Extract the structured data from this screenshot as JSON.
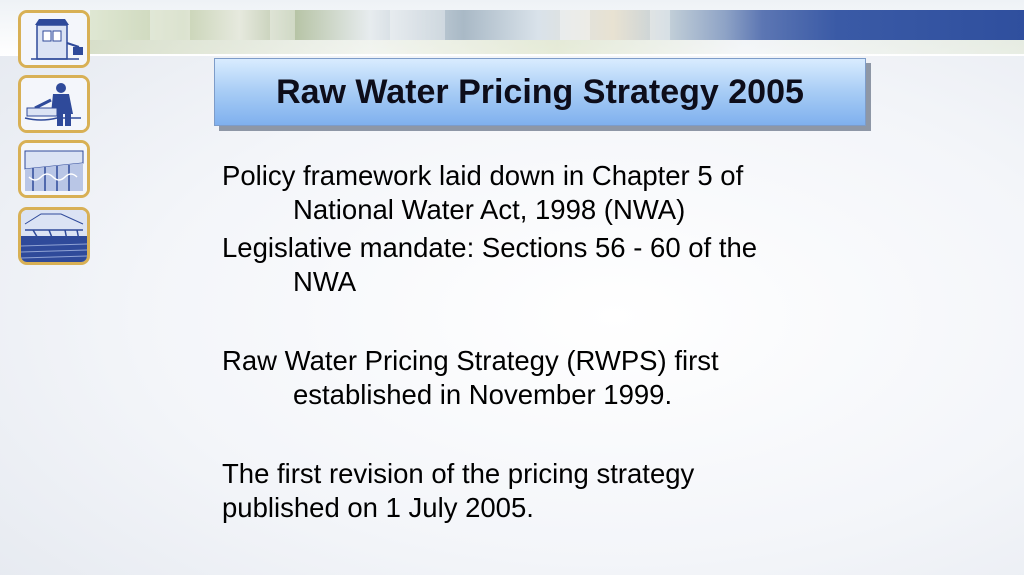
{
  "slide": {
    "title": "Raw Water Pricing Strategy 2005",
    "paragraphs": [
      {
        "lines": [
          "Policy framework laid down in Chapter 5 of",
          "National Water Act, 1998 (NWA)"
        ]
      },
      {
        "lines": [
          "Legislative mandate: Sections 56 - 60 of the",
          "NWA"
        ]
      },
      {
        "lines": [
          "Raw Water Pricing Strategy (RWPS) first",
          "established in November 1999."
        ]
      },
      {
        "lines": [
          "The first revision of the pricing strategy",
          "published on 1 July 2005."
        ]
      }
    ]
  },
  "icons": [
    "water-tower-icon",
    "worker-icon",
    "dam-icon",
    "irrigation-icon"
  ],
  "colors": {
    "title_gradient_top": "#d9ecff",
    "title_gradient_bottom": "#7fb0ee",
    "tile_border": "#d8b055",
    "icon_ink": "#2f4a9a"
  }
}
